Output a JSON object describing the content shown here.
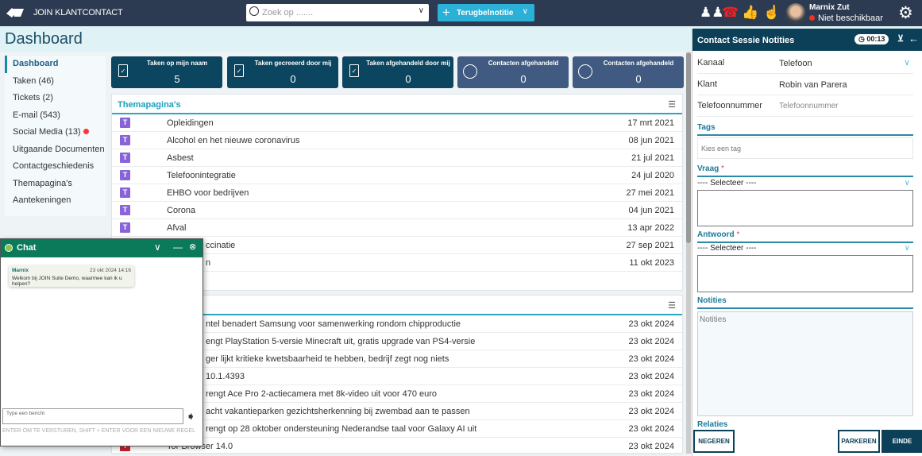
{
  "topbar": {
    "brand": "JOIN KLANTCONTACT",
    "search_placeholder": "Zoek op .......",
    "action_button": "Terugbelnotitie",
    "user_name": "Marnix Zut",
    "user_status": "Niet beschikbaar",
    "status_color": "#e32222"
  },
  "page": {
    "title": "Dashboard"
  },
  "sidebar": {
    "items": [
      {
        "label": "Dashboard"
      },
      {
        "label": "Taken (46)"
      },
      {
        "label": "Tickets (2)"
      },
      {
        "label": "E-mail (543)"
      },
      {
        "label": "Social Media (13)"
      },
      {
        "label": "Uitgaande Documenten"
      },
      {
        "label": "Contactgeschiedenis"
      },
      {
        "label": "Themapagina's"
      },
      {
        "label": "Aantekeningen"
      }
    ]
  },
  "cards": [
    {
      "title": "Taken op mijn naam",
      "value": "5",
      "icon": "clipboard-check"
    },
    {
      "title": "Taken gecreeerd door mij",
      "value": "0",
      "icon": "clipboard-check"
    },
    {
      "title": "Taken afgehandeld door mij",
      "value": "0",
      "icon": "clipboard-check"
    },
    {
      "title": "Contacten afgehandeld",
      "value": "0",
      "icon": "clock-history"
    },
    {
      "title": "Contacten afgehandeld",
      "value": "0",
      "icon": "clock-history"
    }
  ],
  "themapaginas": {
    "title": "Themapagina's",
    "rows": [
      {
        "tag": "T",
        "name": "Opleidingen",
        "date": "17 mrt 2021"
      },
      {
        "tag": "T",
        "name": "Alcohol en het nieuwe coronavirus",
        "date": "08 jun 2021"
      },
      {
        "tag": "T",
        "name": "Asbest",
        "date": "21 jul 2021"
      },
      {
        "tag": "T",
        "name": "Telefoonintegratie",
        "date": "24 jul 2020"
      },
      {
        "tag": "T",
        "name": "EHBO voor bedrijven",
        "date": "27 mei 2021"
      },
      {
        "tag": "T",
        "name": "Corona",
        "date": "04 jun 2021"
      },
      {
        "tag": "T",
        "name": "Afval",
        "date": "13 apr 2022"
      },
      {
        "tag": "",
        "name": "ccinatie",
        "date": "27 sep 2021"
      },
      {
        "tag": "",
        "name": "n",
        "date": "11 okt 2023"
      }
    ]
  },
  "news": {
    "rows": [
      {
        "name": "ntel benadert Samsung voor samenwerking rondom chipproductie",
        "date": "23 okt 2024"
      },
      {
        "name": "engt PlayStation 5-versie Minecraft uit, gratis upgrade van PS4-versie",
        "date": "23 okt 2024"
      },
      {
        "name": "ger lijkt kritieke kwetsbaarheid te hebben, bedrijf zegt nog niets",
        "date": "23 okt 2024"
      },
      {
        "name": "10.1.4393",
        "date": "23 okt 2024"
      },
      {
        "name": "rengt Ace Pro 2-actiecamera met 8k-video uit voor 470 euro",
        "date": "23 okt 2024"
      },
      {
        "name": "acht vakantieparken gezichtsherkenning bij zwembad aan te passen",
        "date": "23 okt 2024"
      },
      {
        "name": "rengt op 28 oktober ondersteuning Nederandse taal voor Galaxy AI uit",
        "date": "23 okt 2024"
      },
      {
        "tag": "T",
        "name": "Tor Browser 14.0",
        "date": "23 okt 2024"
      }
    ]
  },
  "session": {
    "title": "Contact Sessie Notities",
    "timer": "00:13",
    "kanaal_label": "Kanaal",
    "kanaal_value": "Telefoon",
    "klant_label": "Klant",
    "klant_value": "Robin van Parera",
    "tel_label": "Telefoonnummer",
    "tel_placeholder": "Telefoonnummer",
    "tags_label": "Tags",
    "tags_placeholder": "Kies een tag",
    "vraag_label": "Vraag",
    "vraag_select": "---- Selecteer ----",
    "antwoord_label": "Antwoord",
    "antwoord_select": "---- Selecteer ----",
    "notities_label": "Notities",
    "notities_placeholder": "Notities",
    "relaties_label": "Relaties",
    "required": "*",
    "ignore": "NEGEREN",
    "park": "PARKEREN",
    "end": "EINDE"
  },
  "chat": {
    "title": "Chat",
    "sender": "Marnix",
    "time": "23 okt 2024 14:16",
    "message": "Welkom bij JOIN Suite Demo, waarmee kan ik u helpen?",
    "input_placeholder": "Type een bericht",
    "hint": "ENTER OM TE VERSTUREN, SHIFT + ENTER VOOR EEN NIEUWE REGEL"
  }
}
